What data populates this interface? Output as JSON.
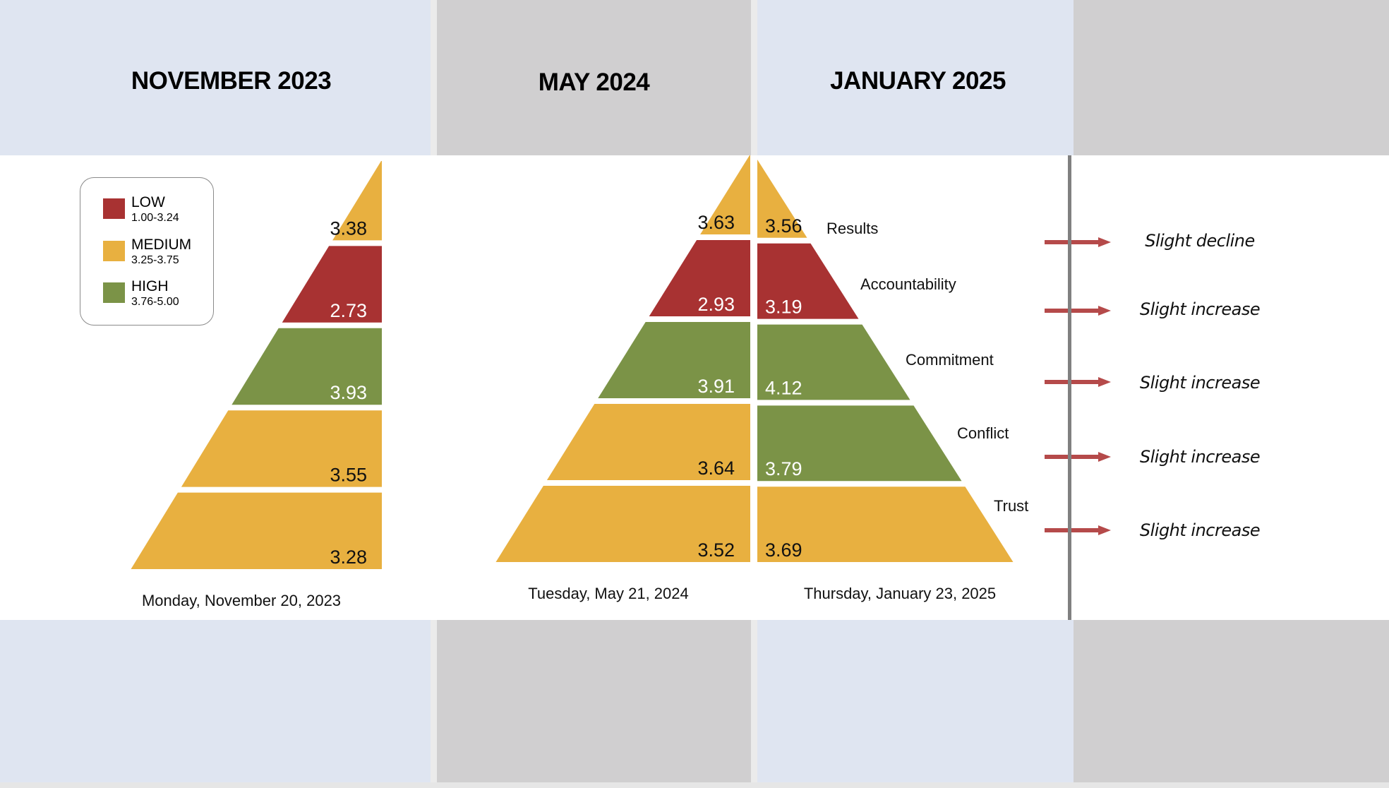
{
  "headers": {
    "col1": "NOVEMBER 2023",
    "col2": "MAY 2024",
    "col3": "JANUARY 2025"
  },
  "legend": {
    "low": {
      "label": "LOW",
      "range": "1.00-3.24",
      "color": "#a83232"
    },
    "medium": {
      "label": "MEDIUM",
      "range": "3.25-3.75",
      "color": "#e8b040"
    },
    "high": {
      "label": "HIGH",
      "range": "3.76-5.00",
      "color": "#7b9347"
    }
  },
  "trends": [
    "Slight decline",
    "Slight increase",
    "Slight increase",
    "Slight increase",
    "Slight increase"
  ],
  "trend_arrow_color": "#b54a4a",
  "chart_data": {
    "type": "pyramid",
    "levels": [
      "Results",
      "Accountability",
      "Commitment",
      "Conflict",
      "Trust"
    ],
    "series": [
      {
        "name": "NOVEMBER 2023",
        "date": "Monday, November 20, 2023",
        "values": [
          "3.38",
          "2.73",
          "3.93",
          "3.55",
          "3.28"
        ]
      },
      {
        "name": "MAY 2024",
        "date": "Tuesday, May 21, 2024",
        "values": [
          "3.63",
          "2.93",
          "3.91",
          "3.64",
          "3.52"
        ]
      },
      {
        "name": "JANUARY 2025",
        "date": "Thursday, January 23, 2025",
        "values": [
          "3.56",
          "3.19",
          "4.12",
          "3.79",
          "3.69"
        ]
      }
    ],
    "thresholds": {
      "low_max": 3.24,
      "medium_max": 3.75
    }
  }
}
